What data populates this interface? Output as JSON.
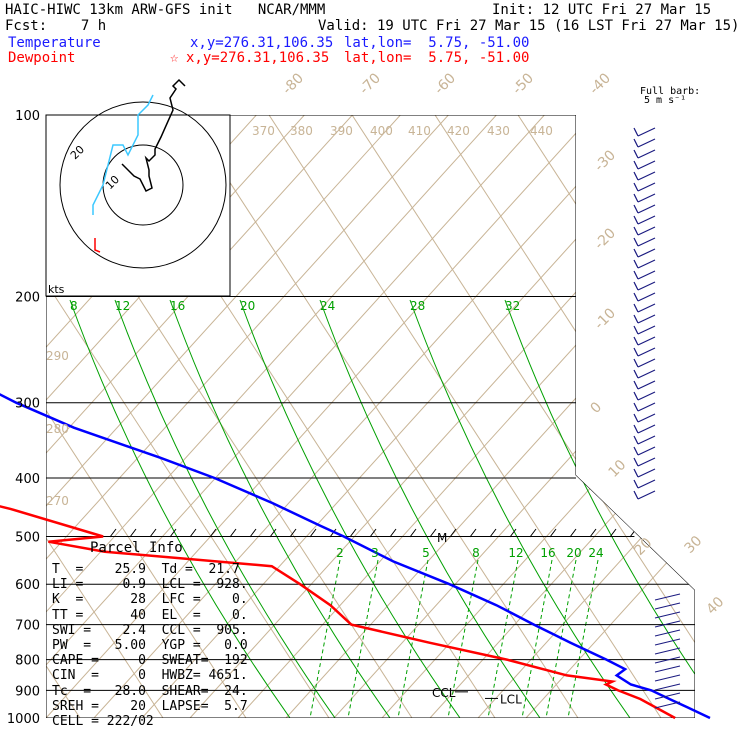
{
  "header": {
    "title": "HAIC-HIWC 13km ARW-GFS init   NCAR/MMM",
    "init": "Init: 12 UTC Fri 27 Mar 15",
    "fcst": "Fcst:    7 h",
    "valid": "Valid: 19 UTC Fri 27 Mar 15 (16 LST Fri 27 Mar 15)",
    "temp_label": "Temperature",
    "temp_coords": "x,y=276.31,106.35",
    "temp_latlon": "lat,lon=  5.75, -51.00",
    "dew_label": "Dewpoint",
    "dew_coords": "x,y=276.31,106.35",
    "dew_latlon": "lat,lon=  5.75, -51.00",
    "barb_label": "Full barb:",
    "barb_unit": "5 m s⁻¹"
  },
  "colors": {
    "temperature": "#0000ff",
    "dewpoint": "#ff0000",
    "mixing": "#00a000",
    "dry": "#c8b496",
    "hodo_upper": "#000000",
    "hodo_lower": "#3cc8ff"
  },
  "chart_data": {
    "type": "line",
    "pressure_ticks": [
      100,
      200,
      300,
      400,
      500,
      600,
      700,
      800,
      900,
      1000
    ],
    "isotherm_labels": [
      "-80",
      "-70",
      "-60",
      "-50",
      "-40",
      "-30",
      "-20",
      "-10",
      "0",
      "10",
      "20",
      "30",
      "40"
    ],
    "theta_labels": [
      "370",
      "380",
      "390",
      "400",
      "410",
      "420",
      "430",
      "440",
      "290",
      "280",
      "270"
    ],
    "mixing_upper_labels": [
      "8",
      "12",
      "16",
      "20",
      "24",
      "28",
      "32"
    ],
    "mixing_lower_labels": [
      "2",
      "3",
      "5",
      "8",
      "12",
      "16",
      "20",
      "24"
    ],
    "series": [
      {
        "name": "Temperature",
        "points": [
          [
            100,
            -68
          ],
          [
            115,
            -74
          ],
          [
            130,
            -76
          ],
          [
            160,
            -71
          ],
          [
            200,
            -58
          ],
          [
            230,
            -47
          ],
          [
            260,
            -39
          ],
          [
            300,
            -33
          ],
          [
            330,
            -28
          ],
          [
            370,
            -20
          ],
          [
            400,
            -15
          ],
          [
            440,
            -10
          ],
          [
            480,
            -6
          ],
          [
            500,
            -4
          ],
          [
            550,
            0
          ],
          [
            600,
            5
          ],
          [
            650,
            9
          ],
          [
            700,
            12
          ],
          [
            750,
            15
          ],
          [
            800,
            18
          ],
          [
            830,
            19.5
          ],
          [
            850,
            18
          ],
          [
            880,
            19
          ],
          [
            900,
            21
          ],
          [
            930,
            22.5
          ],
          [
            960,
            24
          ],
          [
            1000,
            25.9
          ]
        ]
      },
      {
        "name": "Dewpoint",
        "points": [
          [
            100,
            -82
          ],
          [
            115,
            -86
          ],
          [
            150,
            -85
          ],
          [
            170,
            -79
          ],
          [
            180,
            -79
          ],
          [
            200,
            -80
          ],
          [
            220,
            -76
          ],
          [
            250,
            -72
          ],
          [
            260,
            -71
          ],
          [
            280,
            -63
          ],
          [
            300,
            -49
          ],
          [
            320,
            -49
          ],
          [
            350,
            -59
          ],
          [
            380,
            -58
          ],
          [
            400,
            -55
          ],
          [
            450,
            -42
          ],
          [
            500,
            -33
          ],
          [
            510,
            -40
          ],
          [
            530,
            -34
          ],
          [
            560,
            -15
          ],
          [
            600,
            -13
          ],
          [
            650,
            -11
          ],
          [
            700,
            -10
          ],
          [
            750,
            -2
          ],
          [
            800,
            6
          ],
          [
            850,
            12
          ],
          [
            870,
            17
          ],
          [
            880,
            16
          ],
          [
            900,
            17
          ],
          [
            930,
            19
          ],
          [
            1000,
            21.7
          ]
        ]
      }
    ],
    "hodograph": {
      "label": "kts",
      "ring_labels": [
        "10",
        "20"
      ],
      "trace": [
        [
          -7,
          7
        ],
        [
          -3,
          3
        ],
        [
          -1,
          2
        ],
        [
          1,
          -2
        ],
        [
          3,
          -1
        ],
        [
          2,
          3
        ],
        [
          2,
          5
        ],
        [
          1,
          9
        ],
        [
          2,
          8
        ],
        [
          4,
          10
        ],
        [
          4,
          12
        ],
        [
          6,
          16
        ],
        [
          10,
          25
        ],
        [
          9,
          29
        ],
        [
          11,
          32
        ],
        [
          10,
          33
        ],
        [
          12,
          35
        ],
        [
          14,
          33
        ]
      ],
      "trace_lower": [
        [
          -10,
          -3
        ],
        [
          -10,
          -2
        ],
        [
          -8,
          0
        ],
        [
          -7,
          2
        ],
        [
          -6,
          4
        ],
        [
          -4,
          4
        ],
        [
          -3,
          3
        ],
        [
          -1,
          5
        ],
        [
          -1,
          7
        ],
        [
          1,
          8
        ],
        [
          2,
          9
        ]
      ]
    },
    "parcel_info": {
      "title": "Parcel Info",
      "rows": [
        "T  =    25.9  Td =  21.7",
        "LI =     0.9  LCL =  928.",
        "K  =      28  LFC =    0.",
        "TT =      40  EL  =    0.",
        "SWI =    2.4  CCL =  905.",
        "PW  =   5.00  YGP =   0.0",
        "CAPE =     0  SWEAT=  192",
        "CIN  =     0  HWBZ= 4651.",
        "Tc  =   28.0  SHEAR=  24.",
        "SREH =    20  LAPSE=  5.7",
        "CELL = 222/02"
      ]
    },
    "markers": {
      "ccl": "CCL",
      "lcl": "LCL",
      "lfc": "M"
    }
  }
}
